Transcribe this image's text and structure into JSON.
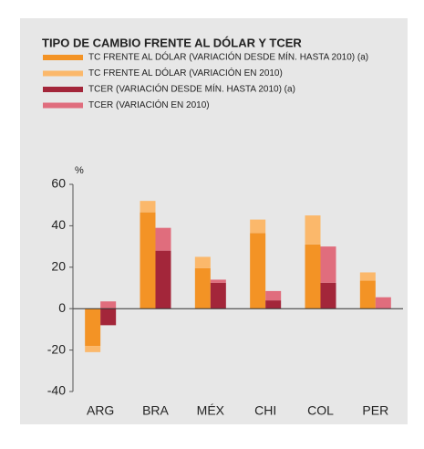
{
  "chart_data": {
    "type": "stacked-grouped-bar",
    "title": "TIPO DE CAMBIO FRENTE AL DÓLAR Y TCER",
    "y_label": "%",
    "categories": [
      "ARG",
      "BRA",
      "MÉX",
      "CHI",
      "COL",
      "PER"
    ],
    "series": [
      {
        "name": "TC FRENTE AL DÓLAR (VARIACIÓN DESDE MÍN. HASTA 2010) (a)",
        "color": "#f39325",
        "stack": 0,
        "values": [
          -18,
          46.5,
          19.5,
          36.5,
          31,
          13.5
        ]
      },
      {
        "name": "TC FRENTE AL DÓLAR (VARIACIÓN EN 2010)",
        "color": "#fbb86b",
        "stack": 0,
        "values": [
          -3,
          5.5,
          5.5,
          6.5,
          14,
          4
        ]
      },
      {
        "name": "TCER (VARIACIÓN DESDE MÍN. HASTA 2010) (a)",
        "color": "#a3263a",
        "stack": 1,
        "values": [
          -8,
          28,
          12.5,
          4,
          12.5,
          0
        ]
      },
      {
        "name": "TCER (VARIACIÓN EN 2010)",
        "color": "#e06d7d",
        "stack": 1,
        "values": [
          3.5,
          11,
          1.5,
          4.5,
          17.5,
          5.5
        ]
      }
    ],
    "ylim": [
      -40,
      60
    ],
    "yticks": [
      -40,
      -20,
      0,
      20,
      40,
      60
    ],
    "grid": false
  }
}
